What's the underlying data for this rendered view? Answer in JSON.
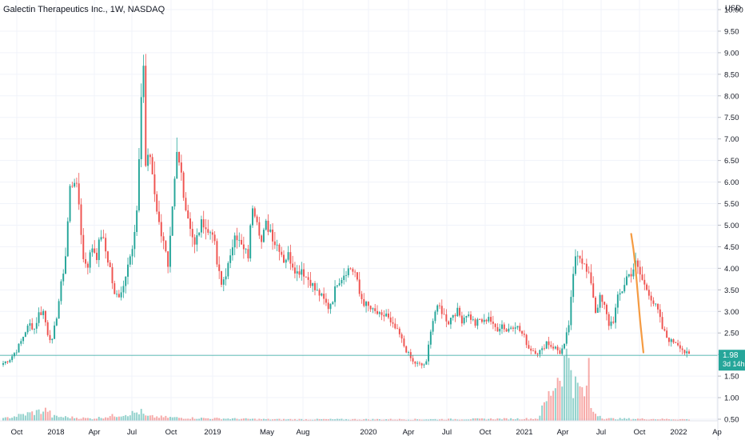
{
  "chart_data": {
    "type": "candlestick",
    "title": "Galectin Therapeutics Inc., 1W, NASDAQ",
    "currency": "USD",
    "y_ticks": [
      "10.00",
      "9.50",
      "9.00",
      "8.50",
      "8.00",
      "7.50",
      "7.00",
      "6.50",
      "6.00",
      "5.50",
      "5.00",
      "4.50",
      "4.00",
      "3.50",
      "3.00",
      "2.50",
      "2.00",
      "1.50",
      "1.00",
      "0.50"
    ],
    "y_range": [
      0.5,
      10.0
    ],
    "x_ticks": [
      "Oct",
      "2018",
      "Apr",
      "Jul",
      "Oct",
      "2019",
      "May",
      "Aug",
      "2020",
      "Apr",
      "Jul",
      "Oct",
      "2021",
      "Apr",
      "Jul",
      "Oct",
      "2022",
      "Ap"
    ],
    "last_price": "1.98",
    "countdown": "3d 14h",
    "colors": {
      "up": "#26a69a",
      "down": "#ef5350",
      "drawing": "#f59b42",
      "price_line": "#26a69a"
    },
    "anchors": [
      [
        0,
        1.8
      ],
      [
        3,
        1.9
      ],
      [
        6,
        2.1
      ],
      [
        8,
        2.3
      ],
      [
        10,
        2.55
      ],
      [
        12,
        2.7
      ],
      [
        14,
        2.6
      ],
      [
        16,
        2.95
      ],
      [
        18,
        3.0
      ],
      [
        20,
        2.5
      ],
      [
        22,
        2.3
      ],
      [
        24,
        2.9
      ],
      [
        26,
        3.6
      ],
      [
        28,
        4.3
      ],
      [
        30,
        5.85
      ],
      [
        32,
        6.1
      ],
      [
        34,
        5.5
      ],
      [
        36,
        4.2
      ],
      [
        38,
        4.1
      ],
      [
        40,
        4.5
      ],
      [
        42,
        4.3
      ],
      [
        44,
        4.8
      ],
      [
        46,
        4.4
      ],
      [
        48,
        4.0
      ],
      [
        50,
        3.35
      ],
      [
        52,
        3.4
      ],
      [
        54,
        3.6
      ],
      [
        56,
        4.2
      ],
      [
        58,
        4.4
      ],
      [
        60,
        5.2
      ],
      [
        62,
        8.0
      ],
      [
        63,
        8.7
      ],
      [
        64,
        6.4
      ],
      [
        66,
        6.6
      ],
      [
        68,
        5.8
      ],
      [
        70,
        5.0
      ],
      [
        72,
        4.7
      ],
      [
        74,
        3.95
      ],
      [
        76,
        5.3
      ],
      [
        78,
        6.6
      ],
      [
        80,
        6.2
      ],
      [
        82,
        5.4
      ],
      [
        84,
        5.0
      ],
      [
        86,
        4.5
      ],
      [
        88,
        4.9
      ],
      [
        90,
        5.1
      ],
      [
        92,
        4.8
      ],
      [
        94,
        4.9
      ],
      [
        96,
        4.1
      ],
      [
        98,
        3.6
      ],
      [
        100,
        3.9
      ],
      [
        102,
        4.2
      ],
      [
        104,
        4.9
      ],
      [
        106,
        4.6
      ],
      [
        108,
        4.4
      ],
      [
        110,
        4.3
      ],
      [
        112,
        5.5
      ],
      [
        114,
        5.2
      ],
      [
        116,
        4.6
      ],
      [
        118,
        5.0
      ],
      [
        120,
        4.9
      ],
      [
        122,
        4.6
      ],
      [
        124,
        4.5
      ],
      [
        126,
        4.2
      ],
      [
        128,
        4.3
      ],
      [
        130,
        4.1
      ],
      [
        132,
        3.9
      ],
      [
        134,
        4.0
      ],
      [
        136,
        3.8
      ],
      [
        138,
        3.7
      ],
      [
        140,
        3.5
      ],
      [
        142,
        3.4
      ],
      [
        144,
        3.25
      ],
      [
        146,
        3.1
      ],
      [
        148,
        3.3
      ],
      [
        150,
        3.7
      ],
      [
        152,
        3.8
      ],
      [
        154,
        3.95
      ],
      [
        156,
        4.0
      ],
      [
        158,
        3.9
      ],
      [
        160,
        3.4
      ],
      [
        162,
        3.2
      ],
      [
        164,
        3.1
      ],
      [
        166,
        3.0
      ],
      [
        168,
        2.95
      ],
      [
        170,
        2.85
      ],
      [
        172,
        2.95
      ],
      [
        174,
        2.7
      ],
      [
        176,
        2.6
      ],
      [
        178,
        2.45
      ],
      [
        180,
        2.2
      ],
      [
        182,
        2.0
      ],
      [
        184,
        1.82
      ],
      [
        186,
        1.78
      ],
      [
        188,
        1.75
      ],
      [
        190,
        1.8
      ],
      [
        192,
        2.6
      ],
      [
        194,
        3.0
      ],
      [
        196,
        3.1
      ],
      [
        198,
        2.9
      ],
      [
        200,
        2.75
      ],
      [
        202,
        2.95
      ],
      [
        204,
        3.0
      ],
      [
        206,
        2.8
      ],
      [
        208,
        2.95
      ],
      [
        210,
        2.85
      ],
      [
        212,
        2.7
      ],
      [
        214,
        2.8
      ],
      [
        216,
        2.75
      ],
      [
        218,
        2.9
      ],
      [
        220,
        2.65
      ],
      [
        222,
        2.6
      ],
      [
        224,
        2.7
      ],
      [
        226,
        2.55
      ],
      [
        228,
        2.65
      ],
      [
        230,
        2.7
      ],
      [
        232,
        2.55
      ],
      [
        234,
        2.4
      ],
      [
        236,
        2.15
      ],
      [
        238,
        2.1
      ],
      [
        240,
        2.05
      ],
      [
        242,
        2.1
      ],
      [
        244,
        2.3
      ],
      [
        246,
        2.2
      ],
      [
        248,
        2.15
      ],
      [
        250,
        2.05
      ],
      [
        252,
        2.2
      ],
      [
        254,
        2.7
      ],
      [
        256,
        3.8
      ],
      [
        257,
        4.3
      ],
      [
        258,
        4.4
      ],
      [
        260,
        4.2
      ],
      [
        262,
        3.9
      ],
      [
        264,
        3.7
      ],
      [
        266,
        3.0
      ],
      [
        268,
        3.3
      ],
      [
        270,
        3.1
      ],
      [
        272,
        2.7
      ],
      [
        274,
        2.8
      ],
      [
        276,
        3.3
      ],
      [
        278,
        3.5
      ],
      [
        280,
        3.8
      ],
      [
        282,
        3.9
      ],
      [
        284,
        4.1
      ],
      [
        286,
        3.85
      ],
      [
        288,
        3.6
      ],
      [
        290,
        3.45
      ],
      [
        292,
        3.2
      ],
      [
        294,
        3.0
      ],
      [
        296,
        2.6
      ],
      [
        298,
        2.4
      ],
      [
        300,
        2.3
      ],
      [
        302,
        2.3
      ],
      [
        304,
        2.2
      ],
      [
        306,
        2.05
      ],
      [
        308,
        1.98
      ]
    ],
    "volume_anchors": [
      [
        0,
        0.03
      ],
      [
        20,
        0.15
      ],
      [
        22,
        0.06
      ],
      [
        40,
        0.03
      ],
      [
        62,
        0.12
      ],
      [
        64,
        0.06
      ],
      [
        80,
        0.04
      ],
      [
        120,
        0.02
      ],
      [
        192,
        0.02
      ],
      [
        240,
        0.03
      ],
      [
        254,
        0.9
      ],
      [
        255,
        0.85
      ],
      [
        256,
        0.5
      ],
      [
        262,
        0.35
      ],
      [
        263,
        0.95
      ],
      [
        264,
        0.15
      ],
      [
        270,
        0.03
      ],
      [
        308,
        0.02
      ]
    ]
  }
}
